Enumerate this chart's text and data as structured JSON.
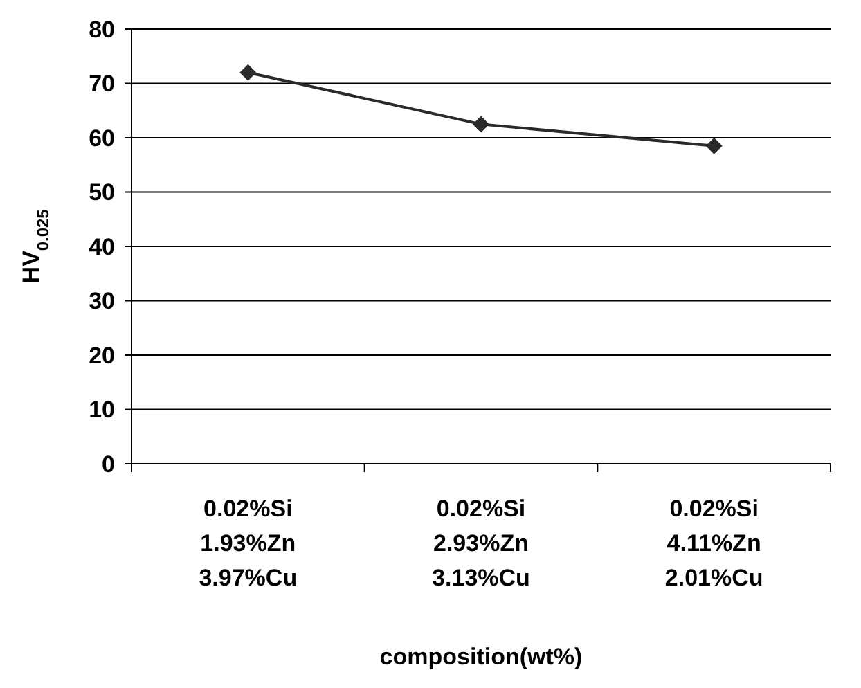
{
  "chart_data": {
    "type": "line",
    "xlabel": "composition(wt%)",
    "ylabel": "HV$_{0.025}$",
    "categories": [
      "0.02%Si\n1.93%Zn\n3.97%Cu",
      "0.02%Si\n2.93%Zn\n3.13%Cu",
      "0.02%Si\n4.11%Zn\n2.01%Cu"
    ],
    "series": [
      {
        "color": "#2a2a2a",
        "values": [
          72,
          62.5,
          58.5
        ]
      }
    ],
    "ylim": [
      0,
      80
    ],
    "yticks": [
      0,
      10,
      20,
      30,
      40,
      50,
      60,
      70,
      80
    ],
    "grid": "y",
    "marker": "diamond",
    "line_style": "solid"
  }
}
